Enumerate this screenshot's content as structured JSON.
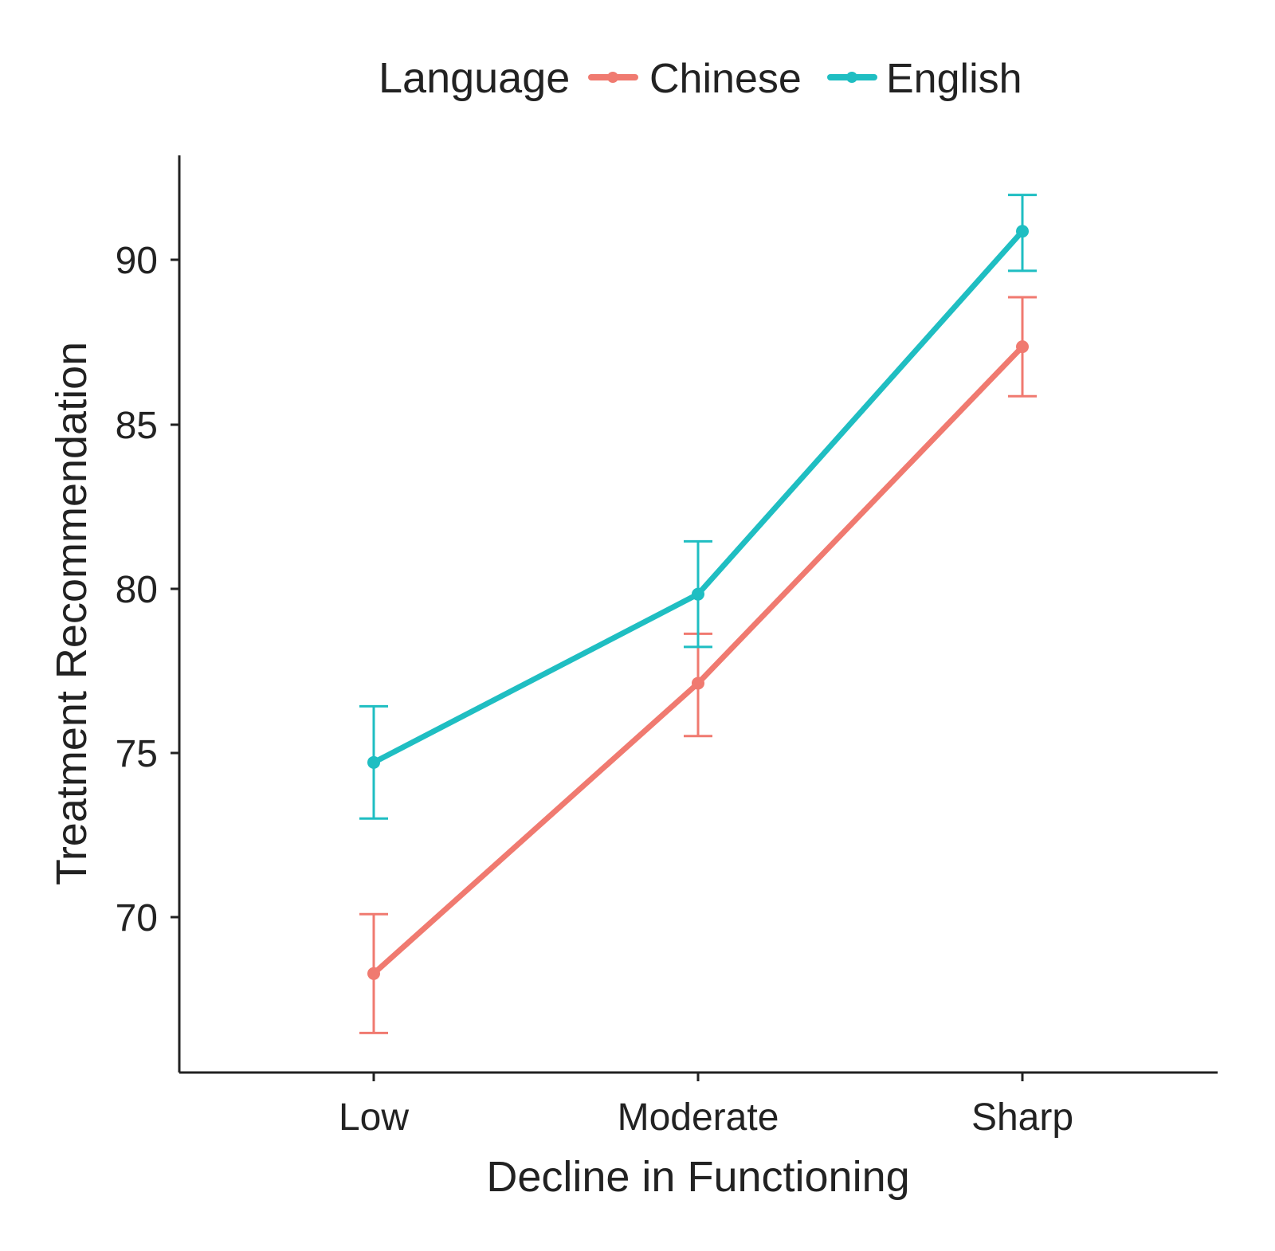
{
  "chart_data": {
    "type": "line",
    "title": "",
    "xlabel": "Decline in Functioning",
    "ylabel": "Treatment Recommendation",
    "categories": [
      "Low",
      "Moderate",
      "Sharp"
    ],
    "ylim": [
      65.3,
      93.1
    ],
    "yticks": [
      "70",
      "75",
      "80",
      "85",
      "90"
    ],
    "grid": false,
    "legend": {
      "title": "Language",
      "position": "top"
    },
    "series": [
      {
        "name": "Chinese",
        "color": "#F07A70",
        "values": [
          68.3,
          77.1,
          87.3
        ],
        "error_low": [
          66.5,
          75.5,
          85.8
        ],
        "error_high": [
          70.1,
          78.6,
          88.8
        ]
      },
      {
        "name": "English",
        "color": "#1FBEC2",
        "values": [
          74.7,
          79.8,
          90.8
        ],
        "error_low": [
          73.0,
          78.2,
          89.6
        ],
        "error_high": [
          76.4,
          81.4,
          91.9
        ]
      }
    ]
  }
}
